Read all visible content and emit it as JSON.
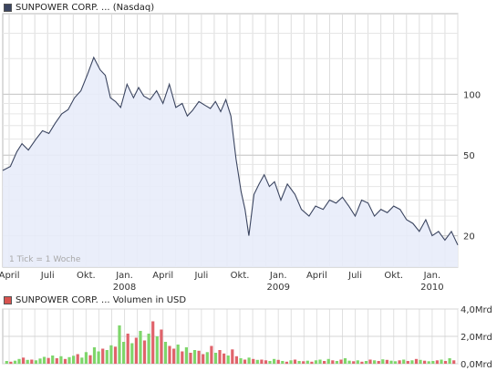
{
  "chart_data": [
    {
      "type": "area",
      "legend": [
        {
          "label": "SUNPOWER CORP. ... (Nasdaq)",
          "color": "#3b4560"
        }
      ],
      "y_scale": "log",
      "ylim": [
        14,
        250
      ],
      "y_ticks": [
        {
          "value": 20,
          "label": "20"
        },
        {
          "value": 50,
          "label": "50"
        },
        {
          "value": 100,
          "label": "100"
        }
      ],
      "x_ticks": [
        {
          "t": 0.5,
          "label": "April",
          "sub": ""
        },
        {
          "t": 3.5,
          "label": "Juli",
          "sub": ""
        },
        {
          "t": 6.5,
          "label": "Okt.",
          "sub": ""
        },
        {
          "t": 9.5,
          "label": "Jan.",
          "sub": "2008"
        },
        {
          "t": 12.5,
          "label": "April",
          "sub": ""
        },
        {
          "t": 15.5,
          "label": "Juli",
          "sub": ""
        },
        {
          "t": 18.5,
          "label": "Okt.",
          "sub": ""
        },
        {
          "t": 21.5,
          "label": "Jan.",
          "sub": "2009"
        },
        {
          "t": 24.5,
          "label": "April",
          "sub": ""
        },
        {
          "t": 27.5,
          "label": "Juli",
          "sub": ""
        },
        {
          "t": 30.5,
          "label": "Okt.",
          "sub": ""
        },
        {
          "t": 33.5,
          "label": "Jan.",
          "sub": "2010"
        }
      ],
      "xlim": [
        0,
        35.5
      ],
      "grid": true,
      "annotation": "1 Tick = 1 Woche",
      "line_color": "#3b4560",
      "fill_color": "#e8ecfa",
      "series": [
        {
          "t": [
            0,
            0.6,
            1.1,
            1.5,
            2.0,
            2.6,
            3.1,
            3.6,
            4.1,
            4.6,
            5.1,
            5.6,
            6.1,
            6.6,
            7.1,
            7.6,
            8.0,
            8.4,
            8.8,
            9.2,
            9.7,
            10.2,
            10.6,
            11.0,
            11.5,
            12.0,
            12.5,
            13.0,
            13.5,
            14.0,
            14.4,
            14.8,
            15.3,
            15.8,
            16.2,
            16.6,
            17.0,
            17.4,
            17.8,
            18.2,
            18.6,
            18.9,
            19.2,
            19.6,
            20.0,
            20.4,
            20.8,
            21.2,
            21.7,
            22.2,
            22.8,
            23.3,
            23.9,
            24.4,
            25.0,
            25.5,
            26.0,
            26.5,
            27.0,
            27.5,
            28.0,
            28.5,
            29.0,
            29.5,
            30.0,
            30.5,
            31.0,
            31.5,
            32.0,
            32.5,
            33.0,
            33.5,
            34.0,
            34.5,
            35.0,
            35.5
          ],
          "y": [
            42,
            44,
            52,
            57,
            53,
            60,
            66,
            64,
            72,
            80,
            84,
            96,
            104,
            125,
            152,
            132,
            124,
            96,
            92,
            86,
            112,
            96,
            108,
            98,
            94,
            104,
            90,
            112,
            86,
            90,
            78,
            83,
            92,
            88,
            85,
            92,
            82,
            94,
            78,
            48,
            33,
            27,
            20,
            32,
            36,
            40,
            35,
            37,
            30,
            36,
            32,
            27,
            25,
            28,
            27,
            30,
            29,
            31,
            28,
            25,
            30,
            29,
            25,
            27,
            26,
            28,
            27,
            24,
            23,
            21,
            24,
            20,
            21,
            19,
            21,
            18
          ]
        }
      ]
    },
    {
      "type": "bar",
      "legend": [
        {
          "label": "SUNPOWER CORP. ... Volumen in USD",
          "color": "#d9534f"
        }
      ],
      "ylim": [
        0,
        4
      ],
      "y_ticks": [
        {
          "value": 0,
          "label": "0,0Mrd"
        },
        {
          "value": 2,
          "label": "2,0Mrd"
        },
        {
          "value": 4,
          "label": "4,0Mrd"
        }
      ],
      "up_color": "#7ed66b",
      "down_color": "#e0636b",
      "values": [
        0.2,
        0.15,
        0.22,
        0.35,
        0.45,
        0.28,
        0.3,
        0.25,
        0.38,
        0.5,
        0.42,
        0.6,
        0.4,
        0.55,
        0.35,
        0.48,
        0.58,
        0.7,
        0.45,
        0.85,
        0.62,
        1.2,
        0.9,
        1.1,
        1.0,
        1.35,
        1.25,
        2.8,
        1.6,
        2.2,
        1.5,
        1.9,
        2.4,
        1.7,
        2.2,
        3.1,
        2.0,
        2.5,
        1.6,
        1.3,
        1.1,
        1.4,
        0.9,
        1.2,
        0.8,
        1.0,
        0.95,
        0.7,
        0.85,
        1.3,
        0.8,
        1.0,
        0.75,
        0.6,
        1.05,
        0.55,
        0.4,
        0.3,
        0.45,
        0.35,
        0.28,
        0.3,
        0.25,
        0.2,
        0.35,
        0.28,
        0.2,
        0.15,
        0.25,
        0.3,
        0.2,
        0.18,
        0.22,
        0.15,
        0.25,
        0.3,
        0.2,
        0.35,
        0.25,
        0.2,
        0.3,
        0.4,
        0.22,
        0.18,
        0.25,
        0.15,
        0.2,
        0.3,
        0.25,
        0.2,
        0.32,
        0.28,
        0.22,
        0.18,
        0.25,
        0.3,
        0.2,
        0.25,
        0.35,
        0.28,
        0.22,
        0.18,
        0.2,
        0.25,
        0.3,
        0.2,
        0.4,
        0.25
      ],
      "up": [
        true,
        false,
        true,
        true,
        false,
        true,
        false,
        true,
        true,
        true,
        false,
        true,
        false,
        true,
        false,
        true,
        true,
        false,
        true,
        true,
        false,
        true,
        true,
        false,
        true,
        true,
        false,
        true,
        true,
        false,
        true,
        false,
        true,
        false,
        true,
        false,
        true,
        false,
        true,
        false,
        false,
        true,
        false,
        true,
        false,
        true,
        false,
        false,
        true,
        false,
        true,
        false,
        false,
        true,
        false,
        false,
        true,
        false,
        true,
        false,
        true,
        false,
        false,
        true,
        true,
        false,
        true,
        false,
        true,
        false,
        true,
        false,
        true,
        false,
        true,
        true,
        false,
        true,
        false,
        true,
        false,
        true,
        true,
        false,
        true,
        false,
        true,
        false,
        true,
        false,
        true,
        false,
        true,
        true,
        false,
        true,
        false,
        true,
        false,
        true,
        false,
        true,
        true,
        false,
        true,
        false,
        true,
        false
      ]
    }
  ]
}
